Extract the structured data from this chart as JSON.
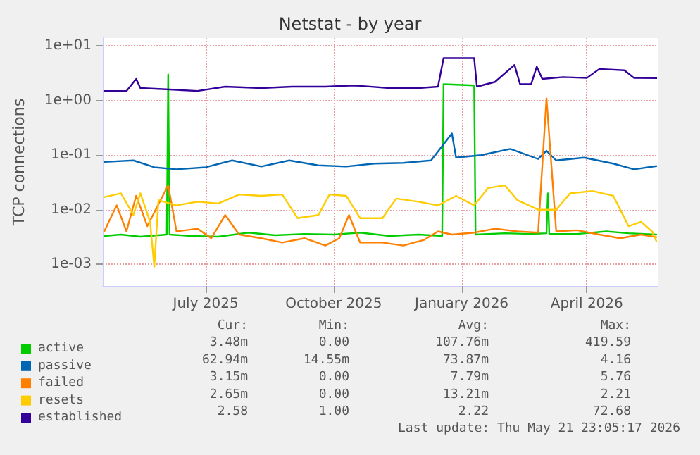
{
  "chart_data": {
    "type": "line",
    "title": "Netstat - by year",
    "ylabel": "TCP connections",
    "log": true,
    "grid": true,
    "legend": "bottom left",
    "marker": "none",
    "line_style": "solid",
    "xlim": [
      "2025-04-18",
      "2026-05-22"
    ],
    "xticks": [
      {
        "value": "2025-07-01",
        "label": "July 2025"
      },
      {
        "value": "2025-10-01",
        "label": "October 2025"
      },
      {
        "value": "2026-01-01",
        "label": "January 2026"
      },
      {
        "value": "2026-04-01",
        "label": "April 2026"
      }
    ],
    "ylim": [
      0.0004,
      14
    ],
    "yticks": [
      {
        "value": 0.001,
        "label": "1e-03"
      },
      {
        "value": 0.01,
        "label": "1e-02"
      },
      {
        "value": 0.1,
        "label": "1e-01"
      },
      {
        "value": 1,
        "label": "1e+00"
      },
      {
        "value": 10,
        "label": "1e+01"
      }
    ],
    "series": [
      {
        "name": "active",
        "color": "#00cc00",
        "x": [
          "2025-04-19",
          "2025-05-01",
          "2025-05-15",
          "2025-06-03",
          "2025-06-04",
          "2025-06-05",
          "2025-06-20",
          "2025-07-10",
          "2025-08-01",
          "2025-08-20",
          "2025-09-10",
          "2025-10-01",
          "2025-10-20",
          "2025-11-10",
          "2025-12-01",
          "2025-12-18",
          "2025-12-19",
          "2026-01-10",
          "2026-01-11",
          "2026-02-01",
          "2026-02-20",
          "2026-03-03",
          "2026-03-04",
          "2026-03-05",
          "2026-03-25",
          "2026-04-15",
          "2026-05-01",
          "2026-05-21"
        ],
        "values": [
          0.0033,
          0.0035,
          0.0032,
          0.0035,
          3.0,
          0.0035,
          0.0033,
          0.0032,
          0.0038,
          0.0034,
          0.0036,
          0.0035,
          0.0038,
          0.0033,
          0.0035,
          0.0033,
          2.0,
          1.9,
          0.0035,
          0.0037,
          0.0036,
          0.0037,
          0.02,
          0.0036,
          0.0036,
          0.004,
          0.0037,
          0.0035
        ]
      },
      {
        "name": "passive",
        "color": "#0066b3",
        "x": [
          "2025-04-19",
          "2025-05-10",
          "2025-05-25",
          "2025-06-10",
          "2025-07-01",
          "2025-07-20",
          "2025-08-10",
          "2025-08-30",
          "2025-09-20",
          "2025-10-10",
          "2025-10-30",
          "2025-11-20",
          "2025-12-10",
          "2025-12-25",
          "2025-12-28",
          "2026-01-15",
          "2026-02-05",
          "2026-02-25",
          "2026-03-03",
          "2026-03-10",
          "2026-03-30",
          "2026-04-20",
          "2026-05-05",
          "2026-05-21"
        ],
        "values": [
          0.075,
          0.08,
          0.06,
          0.055,
          0.06,
          0.08,
          0.062,
          0.08,
          0.065,
          0.062,
          0.07,
          0.072,
          0.08,
          0.25,
          0.09,
          0.1,
          0.13,
          0.085,
          0.12,
          0.08,
          0.09,
          0.07,
          0.055,
          0.063
        ]
      },
      {
        "name": "failed",
        "color": "#ff8000",
        "x": [
          "2025-04-19",
          "2025-04-28",
          "2025-05-05",
          "2025-05-12",
          "2025-05-20",
          "2025-06-04",
          "2025-06-10",
          "2025-06-25",
          "2025-07-05",
          "2025-07-15",
          "2025-07-25",
          "2025-08-10",
          "2025-08-25",
          "2025-09-10",
          "2025-09-25",
          "2025-10-05",
          "2025-10-12",
          "2025-10-20",
          "2025-11-05",
          "2025-11-20",
          "2025-12-05",
          "2025-12-15",
          "2025-12-25",
          "2026-01-10",
          "2026-01-25",
          "2026-02-10",
          "2026-02-25",
          "2026-03-03",
          "2026-03-06",
          "2026-03-10",
          "2026-03-25",
          "2026-04-10",
          "2026-04-25",
          "2026-05-10",
          "2026-05-21"
        ],
        "values": [
          0.004,
          0.012,
          0.004,
          0.018,
          0.005,
          0.028,
          0.004,
          0.0045,
          0.003,
          0.008,
          0.0035,
          0.003,
          0.0025,
          0.003,
          0.0022,
          0.003,
          0.008,
          0.0025,
          0.0025,
          0.0022,
          0.0028,
          0.004,
          0.0035,
          0.0038,
          0.0045,
          0.004,
          0.0038,
          1.1,
          0.1,
          0.004,
          0.0042,
          0.0035,
          0.003,
          0.0035,
          0.00315
        ]
      },
      {
        "name": "resets",
        "color": "#ffcc00",
        "x": [
          "2025-04-19",
          "2025-05-01",
          "2025-05-10",
          "2025-05-15",
          "2025-05-22",
          "2025-05-25",
          "2025-05-28",
          "2025-06-10",
          "2025-06-25",
          "2025-07-10",
          "2025-07-25",
          "2025-08-10",
          "2025-08-25",
          "2025-09-05",
          "2025-09-20",
          "2025-09-28",
          "2025-10-10",
          "2025-10-20",
          "2025-11-05",
          "2025-11-15",
          "2025-12-01",
          "2025-12-15",
          "2025-12-28",
          "2026-01-10",
          "2026-01-20",
          "2026-02-01",
          "2026-02-10",
          "2026-02-25",
          "2026-03-10",
          "2026-03-20",
          "2026-04-05",
          "2026-04-20",
          "2026-05-01",
          "2026-05-10",
          "2026-05-18",
          "2026-05-21"
        ],
        "values": [
          0.017,
          0.02,
          0.008,
          0.02,
          0.006,
          0.0009,
          0.015,
          0.012,
          0.014,
          0.013,
          0.019,
          0.018,
          0.019,
          0.007,
          0.008,
          0.019,
          0.018,
          0.007,
          0.007,
          0.016,
          0.014,
          0.012,
          0.018,
          0.012,
          0.025,
          0.028,
          0.015,
          0.01,
          0.01,
          0.02,
          0.022,
          0.018,
          0.005,
          0.006,
          0.004,
          0.00265
        ]
      },
      {
        "name": "established",
        "color": "#330099",
        "x": [
          "2025-04-19",
          "2025-05-05",
          "2025-05-12",
          "2025-05-15",
          "2025-06-05",
          "2025-06-25",
          "2025-07-15",
          "2025-08-10",
          "2025-09-01",
          "2025-09-25",
          "2025-10-15",
          "2025-11-10",
          "2025-12-01",
          "2025-12-15",
          "2025-12-19",
          "2026-01-10",
          "2026-01-12",
          "2026-01-25",
          "2026-02-08",
          "2026-02-12",
          "2026-02-20",
          "2026-02-24",
          "2026-02-28",
          "2026-03-15",
          "2026-04-01",
          "2026-04-10",
          "2026-04-28",
          "2026-05-05",
          "2026-05-21"
        ],
        "values": [
          1.5,
          1.5,
          2.5,
          1.7,
          1.6,
          1.5,
          1.8,
          1.7,
          1.8,
          1.8,
          1.9,
          1.7,
          1.7,
          1.8,
          6.0,
          6.0,
          1.8,
          2.2,
          4.5,
          2.0,
          2.0,
          4.2,
          2.5,
          2.7,
          2.6,
          3.8,
          3.6,
          2.6,
          2.58
        ]
      }
    ],
    "annotations": [
      "Cur:",
      "Min:",
      "Avg:",
      "Max:",
      "3.48m",
      "0.00",
      "107.76m",
      "419.59",
      "62.94m",
      "14.55m",
      "73.87m",
      "4.16",
      "3.15m",
      "0.00",
      "7.79m",
      "5.76",
      "2.65m",
      "0.00",
      "13.21m",
      "2.21",
      "2.58",
      "1.00",
      "2.22",
      "72.68",
      "Last update: Thu May 21 23:05:17 2026"
    ]
  }
}
